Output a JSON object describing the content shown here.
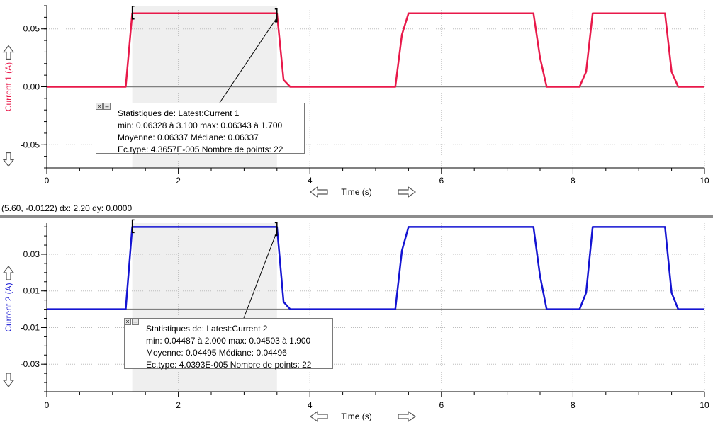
{
  "status_readout": "(5.60, -0.0122) dx: 2.20 dy: 0.0000",
  "chart_data": [
    {
      "type": "line",
      "ylabel": "Current 1 (A)",
      "xlabel": "Time (s)",
      "color": "#e8194a",
      "xlim": [
        0,
        10
      ],
      "ylim": [
        -0.07,
        0.07
      ],
      "x_ticks": [
        "0",
        "2",
        "4",
        "6",
        "8",
        "10"
      ],
      "y_ticks": [
        "0.05",
        "0.00",
        "-0.05"
      ],
      "y_tick_values": [
        0.05,
        0.0,
        -0.05
      ],
      "selection_range": [
        1.3,
        3.5
      ],
      "series": [
        {
          "x": [
            0,
            1.2,
            1.3,
            3.5,
            3.6,
            3.7,
            5.3,
            5.4,
            5.5,
            7.4,
            7.5,
            7.6,
            8.1,
            8.2,
            8.3,
            9.4,
            9.5,
            9.6,
            10
          ],
          "y": [
            0,
            0,
            0.0634,
            0.0634,
            0.006,
            0,
            0,
            0.045,
            0.0634,
            0.0634,
            0.025,
            0,
            0,
            0.013,
            0.0634,
            0.0634,
            0.013,
            0,
            0
          ]
        }
      ],
      "stats": {
        "title": "Statistiques de: Latest:Current 1",
        "line2": "min: 0.06328 à 3.100 max: 0.06343 à 1.700",
        "line3": "Moyenne: 0.06337 Médiane: 0.06337",
        "line4": "Ec.type: 4.3657E-005 Nombre de points: 22"
      }
    },
    {
      "type": "line",
      "ylabel": "Current 2 (A)",
      "xlabel": "Time (s)",
      "color": "#1414d2",
      "xlim": [
        0,
        10
      ],
      "ylim": [
        -0.045,
        0.047
      ],
      "x_ticks": [
        "0",
        "2",
        "4",
        "6",
        "8",
        "10"
      ],
      "y_ticks": [
        "0.03",
        "0.01",
        "-0.01",
        "-0.03"
      ],
      "y_tick_values": [
        0.03,
        0.01,
        -0.01,
        -0.03
      ],
      "selection_range": [
        1.3,
        3.5
      ],
      "series": [
        {
          "x": [
            0,
            1.2,
            1.3,
            3.5,
            3.6,
            3.7,
            5.3,
            5.4,
            5.5,
            7.4,
            7.5,
            7.6,
            8.1,
            8.2,
            8.3,
            9.4,
            9.5,
            9.6,
            10
          ],
          "y": [
            0,
            0,
            0.0449,
            0.0449,
            0.004,
            0,
            0,
            0.032,
            0.0449,
            0.0449,
            0.018,
            0,
            0,
            0.009,
            0.0449,
            0.0449,
            0.009,
            0,
            0
          ]
        }
      ],
      "stats": {
        "title": "Statistiques de: Latest:Current 2",
        "line2": "min: 0.04487 à 2.000 max: 0.04503 à 1.900",
        "line3": "Moyenne: 0.04495 Médiane: 0.04496",
        "line4": "Ec.type: 4.0393E-005 Nombre de points: 22"
      }
    }
  ],
  "icons": {
    "y_up": "up-arrow-outline-icon",
    "y_down": "down-arrow-outline-icon",
    "x_left": "left-arrow-outline-icon",
    "x_right": "right-arrow-outline-icon"
  },
  "stats_close": "×",
  "stats_min": "–"
}
